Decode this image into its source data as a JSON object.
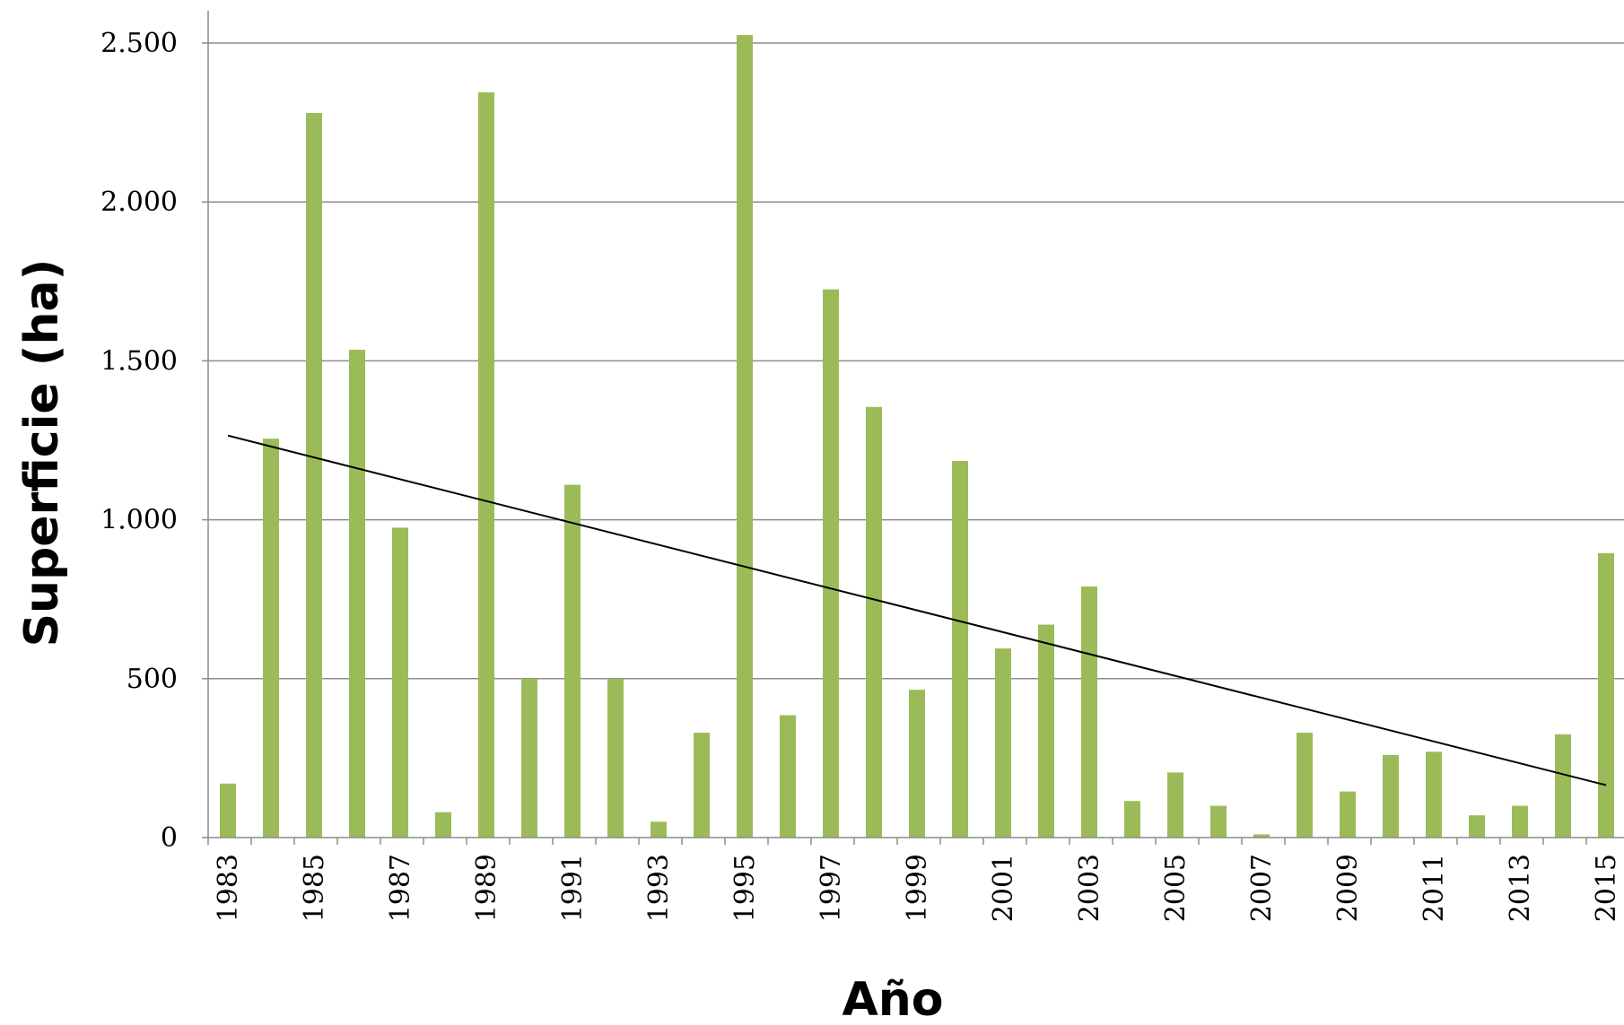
{
  "chart_data": {
    "type": "bar",
    "xlabel": "Año",
    "ylabel": "Superficie (ha)",
    "ylim": [
      0,
      2500
    ],
    "yticks": [
      {
        "value": 0,
        "label": "0"
      },
      {
        "value": 500,
        "label": "500"
      },
      {
        "value": 1000,
        "label": "1.000"
      },
      {
        "value": 1500,
        "label": "1.500"
      },
      {
        "value": 2000,
        "label": "2.000"
      },
      {
        "value": 2500,
        "label": "2.500"
      }
    ],
    "grid": true,
    "bar_color": "#9BBB59",
    "trendline": {
      "type": "linear",
      "color": "#000000",
      "start": 1265,
      "end": 165
    },
    "categories": [
      "1983",
      "1984",
      "1985",
      "1986",
      "1987",
      "1988",
      "1989",
      "1990",
      "1991",
      "1992",
      "1993",
      "1994",
      "1995",
      "1996",
      "1997",
      "1998",
      "1999",
      "2000",
      "2001",
      "2002",
      "2003",
      "2004",
      "2005",
      "2006",
      "2007",
      "2008",
      "2009",
      "2010",
      "2011",
      "2012",
      "2013",
      "2014",
      "2015"
    ],
    "tick_labels": [
      "1983",
      "",
      "1985",
      "",
      "1987",
      "",
      "1989",
      "",
      "1991",
      "",
      "1993",
      "",
      "1995",
      "",
      "1997",
      "",
      "1999",
      "",
      "2001",
      "",
      "2003",
      "",
      "2005",
      "",
      "2007",
      "",
      "2009",
      "",
      "2011",
      "",
      "2013",
      "",
      "2015"
    ],
    "values": [
      170,
      1255,
      2280,
      1535,
      975,
      80,
      2345,
      500,
      1110,
      500,
      50,
      330,
      2525,
      385,
      1725,
      1355,
      465,
      1185,
      595,
      670,
      790,
      115,
      205,
      100,
      10,
      330,
      145,
      260,
      270,
      70,
      100,
      325,
      895
    ]
  }
}
